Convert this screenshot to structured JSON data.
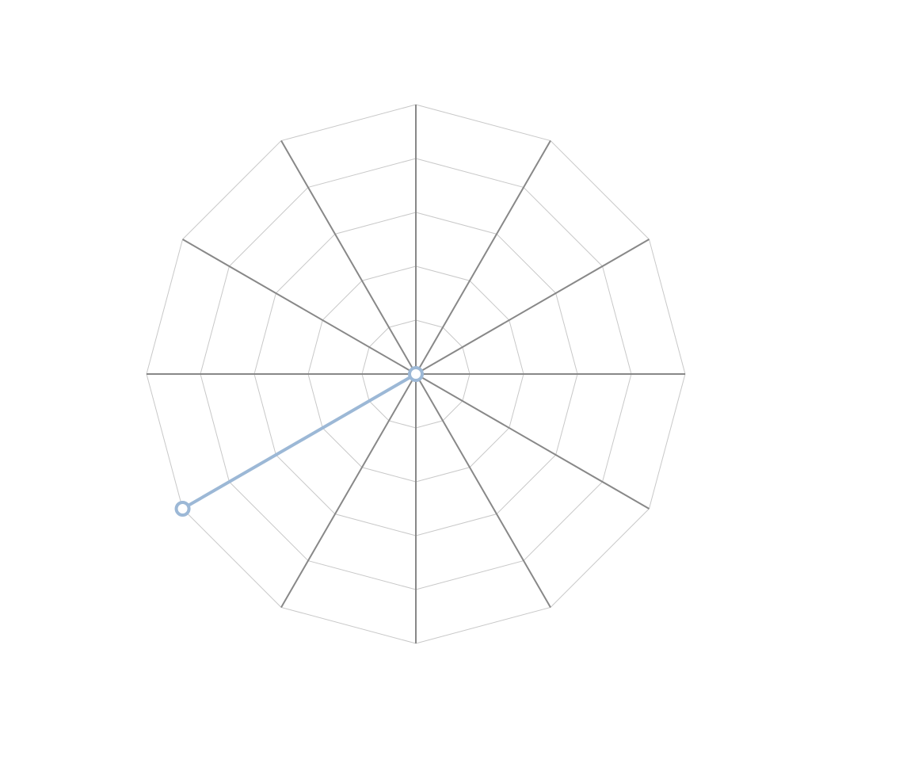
{
  "chart_data": {
    "type": "radar",
    "title": "",
    "axes_count": 12,
    "start_angle_deg": 90,
    "direction": "clockwise",
    "rlim": [
      0,
      5
    ],
    "ring_count": 5,
    "grid": true,
    "tick_labels_visible": false,
    "axis_labels": [],
    "series": [
      {
        "points": [
          {
            "axis": 0,
            "value": 0
          },
          {
            "axis": 8,
            "value": 5
          }
        ]
      }
    ],
    "colors": {
      "series": "#9cb8d6",
      "spoke": "#888888",
      "ring": "#c8c8c8",
      "background": "#ffffff"
    }
  }
}
